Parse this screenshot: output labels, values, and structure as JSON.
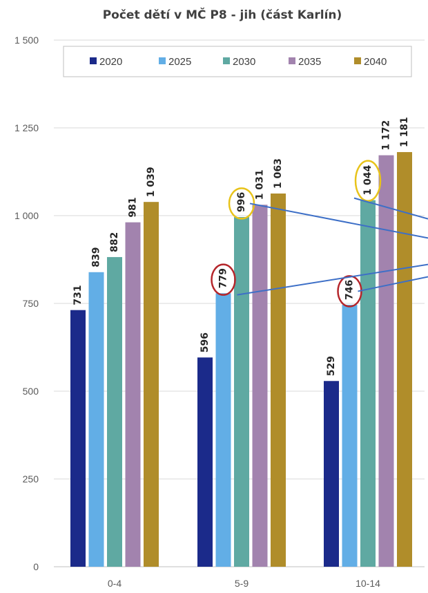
{
  "chart_data": {
    "type": "bar",
    "title": "Počet dětí v MČ P8 - jih (část Karlín)",
    "categories": [
      "0-4",
      "5-9",
      "10-14"
    ],
    "series": [
      {
        "name": "2020",
        "color": "#1b2a8a",
        "values": [
          731,
          596,
          529
        ],
        "labels": [
          "731",
          "596",
          "529"
        ]
      },
      {
        "name": "2025",
        "color": "#62aee6",
        "values": [
          839,
          779,
          746
        ],
        "labels": [
          "839",
          "779",
          "746"
        ]
      },
      {
        "name": "2030",
        "color": "#5fa9a2",
        "values": [
          882,
          996,
          1044
        ],
        "labels": [
          "882",
          "996",
          "1 044"
        ]
      },
      {
        "name": "2035",
        "color": "#a283ae",
        "values": [
          981,
          1031,
          1172
        ],
        "labels": [
          "981",
          "1 031",
          "1 172"
        ]
      },
      {
        "name": "2040",
        "color": "#b08d2a",
        "values": [
          1039,
          1063,
          1181
        ],
        "labels": [
          "1 039",
          "1 063",
          "1 181"
        ]
      }
    ],
    "ylim": [
      0,
      1500
    ],
    "yticks": [
      0,
      250,
      500,
      750,
      1000,
      1250,
      1500
    ],
    "ytick_labels": [
      "0",
      "250",
      "500",
      "750",
      "1 000",
      "1 250",
      "1 500"
    ],
    "legend_position": "top",
    "grid": true,
    "annotations": {
      "red_circles": [
        {
          "category": "5-9",
          "series": "2025"
        },
        {
          "category": "10-14",
          "series": "2025"
        }
      ],
      "yellow_circles": [
        {
          "category": "5-9",
          "series": "2030"
        },
        {
          "category": "10-14",
          "series": "2030"
        }
      ],
      "red_color": "#b5262b",
      "yellow_color": "#e8c31a",
      "line_color": "#3d6fc7"
    }
  }
}
